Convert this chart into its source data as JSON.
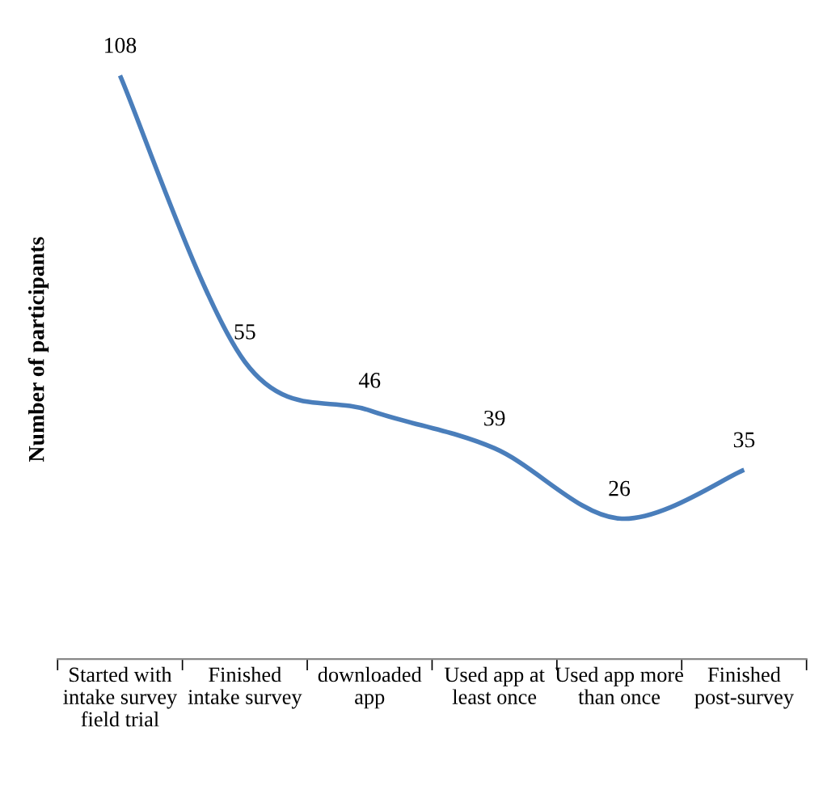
{
  "chart_data": {
    "type": "line",
    "ylabel": "Number of participants",
    "categories": [
      "Started with intake survey field trial",
      "Finished intake survey",
      "downloaded app",
      "Used app at least once",
      "Used app more than once",
      "Finished post-survey"
    ],
    "series": [
      {
        "color": "#4a7ebb",
        "values": [
          108,
          55,
          46,
          39,
          26,
          35
        ]
      }
    ],
    "data_labels": true,
    "grid": false,
    "marker": "none",
    "line_style": "solid",
    "tick_labels": "x"
  }
}
